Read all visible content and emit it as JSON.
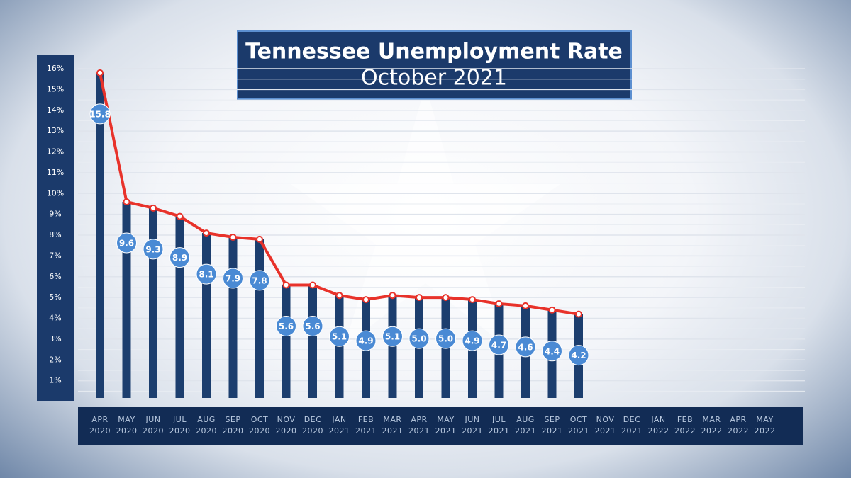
{
  "chart_data": {
    "type": "bar",
    "title": "Tennessee Unemployment Rate",
    "subtitle": "October 2021",
    "categories": [
      "APR 2020",
      "MAY 2020",
      "JUN 2020",
      "JUL 2020",
      "AUG 2020",
      "SEP 2020",
      "OCT 2020",
      "NOV 2020",
      "DEC 2020",
      "JAN 2021",
      "FEB 2021",
      "MAR 2021",
      "APR 2021",
      "MAY 2021",
      "JUN 2021",
      "JUL 2021",
      "AUG 2021",
      "SEP 2021",
      "OCT 2021",
      "NOV 2021",
      "DEC 2021",
      "JAN 2022",
      "FEB 2022",
      "MAR 2022",
      "APR 2022",
      "MAY 2022"
    ],
    "values": [
      15.8,
      9.6,
      9.3,
      8.9,
      8.1,
      7.9,
      7.8,
      5.6,
      5.6,
      5.1,
      4.9,
      5.1,
      5.0,
      5.0,
      4.9,
      4.7,
      4.6,
      4.4,
      4.2,
      null,
      null,
      null,
      null,
      null,
      null,
      null
    ],
    "value_labels": [
      "15.8",
      "9.6",
      "9.3",
      "8.9",
      "8.1",
      "7.9",
      "7.8",
      "5.6",
      "5.6",
      "5.1",
      "4.9",
      "5.1",
      "5.0",
      "5.0",
      "4.9",
      "4.7",
      "4.6",
      "4.4",
      "4.2",
      null,
      null,
      null,
      null,
      null,
      null,
      null
    ],
    "bar_color": "#1c3e6e",
    "line_color": "#e8322a",
    "label_color": "#4a8ad4",
    "ylim": [
      0,
      16
    ],
    "yticks": [
      {
        "value": 1,
        "label": "1%"
      },
      {
        "value": 2,
        "label": "2%"
      },
      {
        "value": 3,
        "label": "3%"
      },
      {
        "value": 4,
        "label": "4%"
      },
      {
        "value": 5,
        "label": "5%"
      },
      {
        "value": 6,
        "label": "6%"
      },
      {
        "value": 7,
        "label": "7%"
      },
      {
        "value": 8,
        "label": "8%"
      },
      {
        "value": 9,
        "label": "9%"
      },
      {
        "value": 10,
        "label": "10%"
      },
      {
        "value": 11,
        "label": "11%"
      },
      {
        "value": 12,
        "label": "12%"
      },
      {
        "value": 13,
        "label": "13%"
      },
      {
        "value": 14,
        "label": "14%"
      },
      {
        "value": 15,
        "label": "15%"
      },
      {
        "value": 16,
        "label": "16%"
      }
    ],
    "grid": true
  }
}
